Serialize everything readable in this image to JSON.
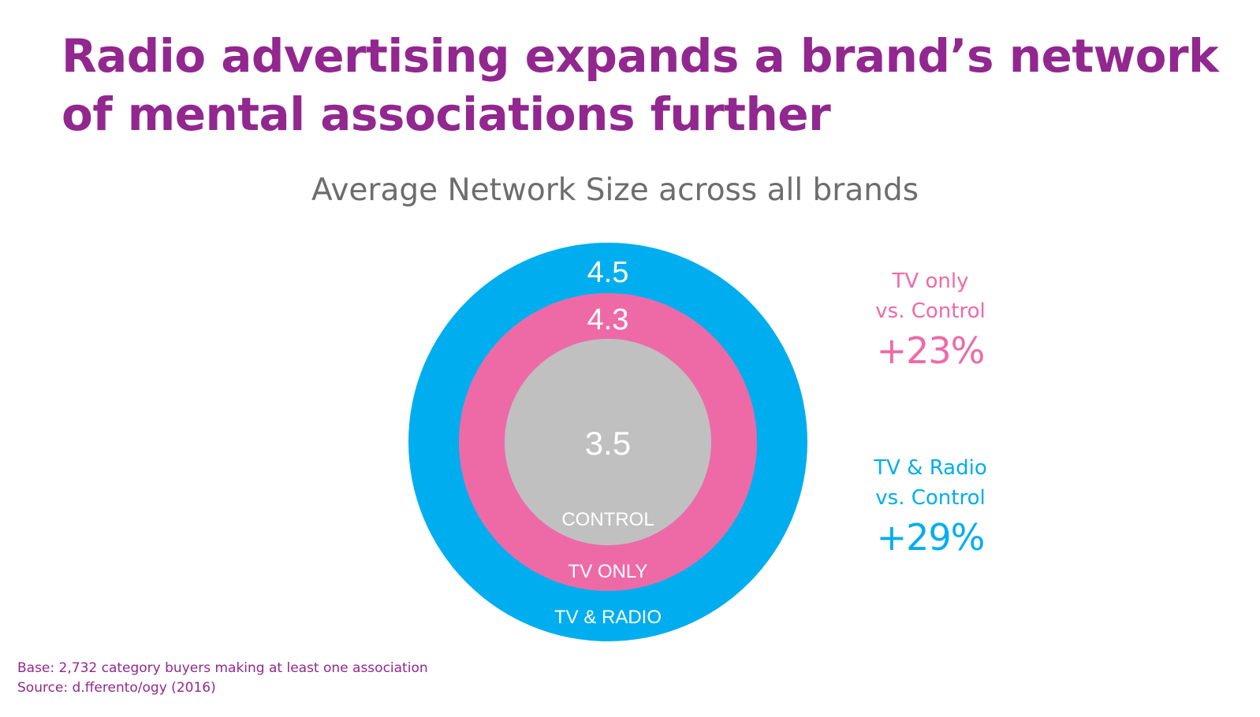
{
  "title_lines": [
    "Radio advertising expands a brand’s network",
    "of mental associations further"
  ],
  "chart_data": {
    "type": "nested-circles",
    "title": "Average Network Size across all brands",
    "series": [
      {
        "name": "TV & RADIO",
        "value": 4.5,
        "value_label": "4.5",
        "color": "#00aeef"
      },
      {
        "name": "TV ONLY",
        "value": 4.3,
        "value_label": "4.3",
        "color": "#ee6aa7"
      },
      {
        "name": "CONTROL",
        "value": 3.5,
        "value_label": "3.5",
        "color": "#c0c0c0"
      }
    ],
    "annotations": [
      {
        "line1": "TV only",
        "line2": "vs. Control",
        "value": "+23%",
        "color": "#ee6aa7"
      },
      {
        "line1": "TV & Radio",
        "line2": "vs. Control",
        "value": "+29%",
        "color": "#00aeef"
      }
    ]
  },
  "footer": {
    "base": "Base: 2,732 category buyers making at least one association",
    "source": "Source: d.fferento/ogy (2016)"
  }
}
